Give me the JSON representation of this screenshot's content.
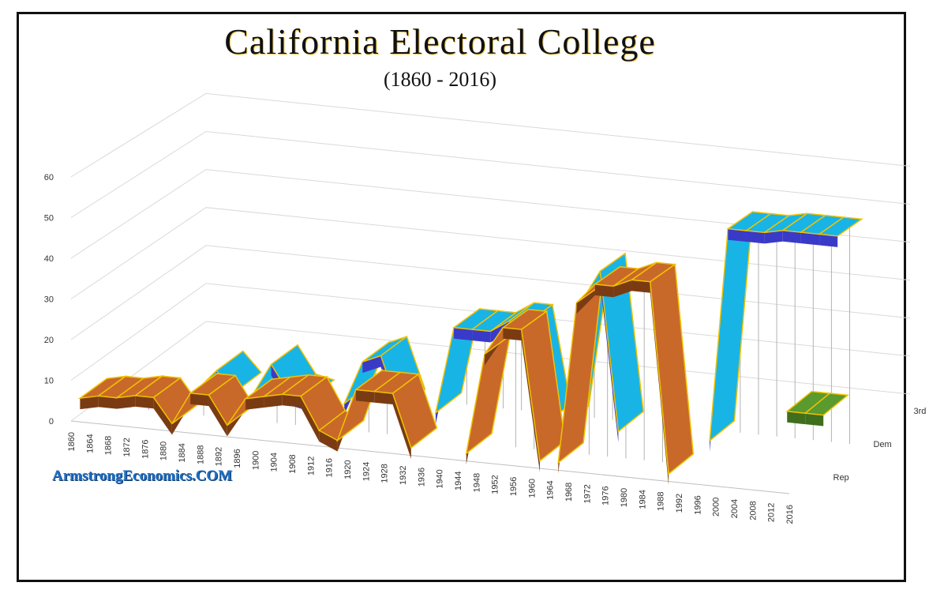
{
  "title": "California Electoral College",
  "subtitle": "(1860 - 2016)",
  "watermark": "ArmstrongEconomics.COM",
  "chart_data": {
    "type": "line",
    "view": "3d",
    "y_ticks": [
      0,
      10,
      20,
      30,
      40,
      50,
      60
    ],
    "ylim": [
      0,
      60
    ],
    "categories": [
      "1860",
      "1864",
      "1868",
      "1872",
      "1876",
      "1880",
      "1884",
      "1888",
      "1892",
      "1896",
      "1900",
      "1904",
      "1908",
      "1912",
      "1916",
      "1920",
      "1924",
      "1928",
      "1932",
      "1936",
      "1940",
      "1944",
      "1948",
      "1952",
      "1956",
      "1960",
      "1964",
      "1968",
      "1972",
      "1976",
      "1980",
      "1984",
      "1988",
      "1992",
      "1996",
      "2000",
      "2004",
      "2008",
      "2012",
      "2016"
    ],
    "depth_categories": [
      "Rep",
      "Dem",
      "3rd"
    ],
    "series": [
      {
        "name": "Rep",
        "color": "#c8692a",
        "values": [
          4,
          5,
          5,
          6,
          6,
          0,
          8,
          8,
          1,
          8,
          9,
          10,
          10,
          2,
          0,
          13,
          13,
          13,
          0,
          0,
          0,
          0,
          25,
          32,
          32,
          0,
          0,
          40,
          45,
          45,
          47,
          47,
          0,
          0,
          0,
          0,
          0,
          0,
          0,
          0
        ]
      },
      {
        "name": "Dem",
        "color": "#18b4e6",
        "values": [
          0,
          0,
          0,
          0,
          0,
          5,
          0,
          0,
          8,
          1,
          0,
          0,
          0,
          11,
          13,
          0,
          0,
          0,
          22,
          22,
          22,
          25,
          25,
          0,
          0,
          32,
          40,
          0,
          0,
          0,
          0,
          0,
          0,
          54,
          54,
          54,
          55,
          55,
          55,
          55
        ]
      },
      {
        "name": "3rd",
        "color": "#5a9a2e",
        "values": [
          0,
          0,
          0,
          0,
          0,
          0,
          0,
          0,
          0,
          0,
          0,
          0,
          0,
          0,
          0,
          0,
          0,
          0,
          0,
          0,
          0,
          0,
          0,
          0,
          0,
          0,
          0,
          0,
          0,
          0,
          0,
          0,
          0,
          0,
          0,
          0,
          0,
          0,
          0,
          0
        ]
      }
    ]
  }
}
